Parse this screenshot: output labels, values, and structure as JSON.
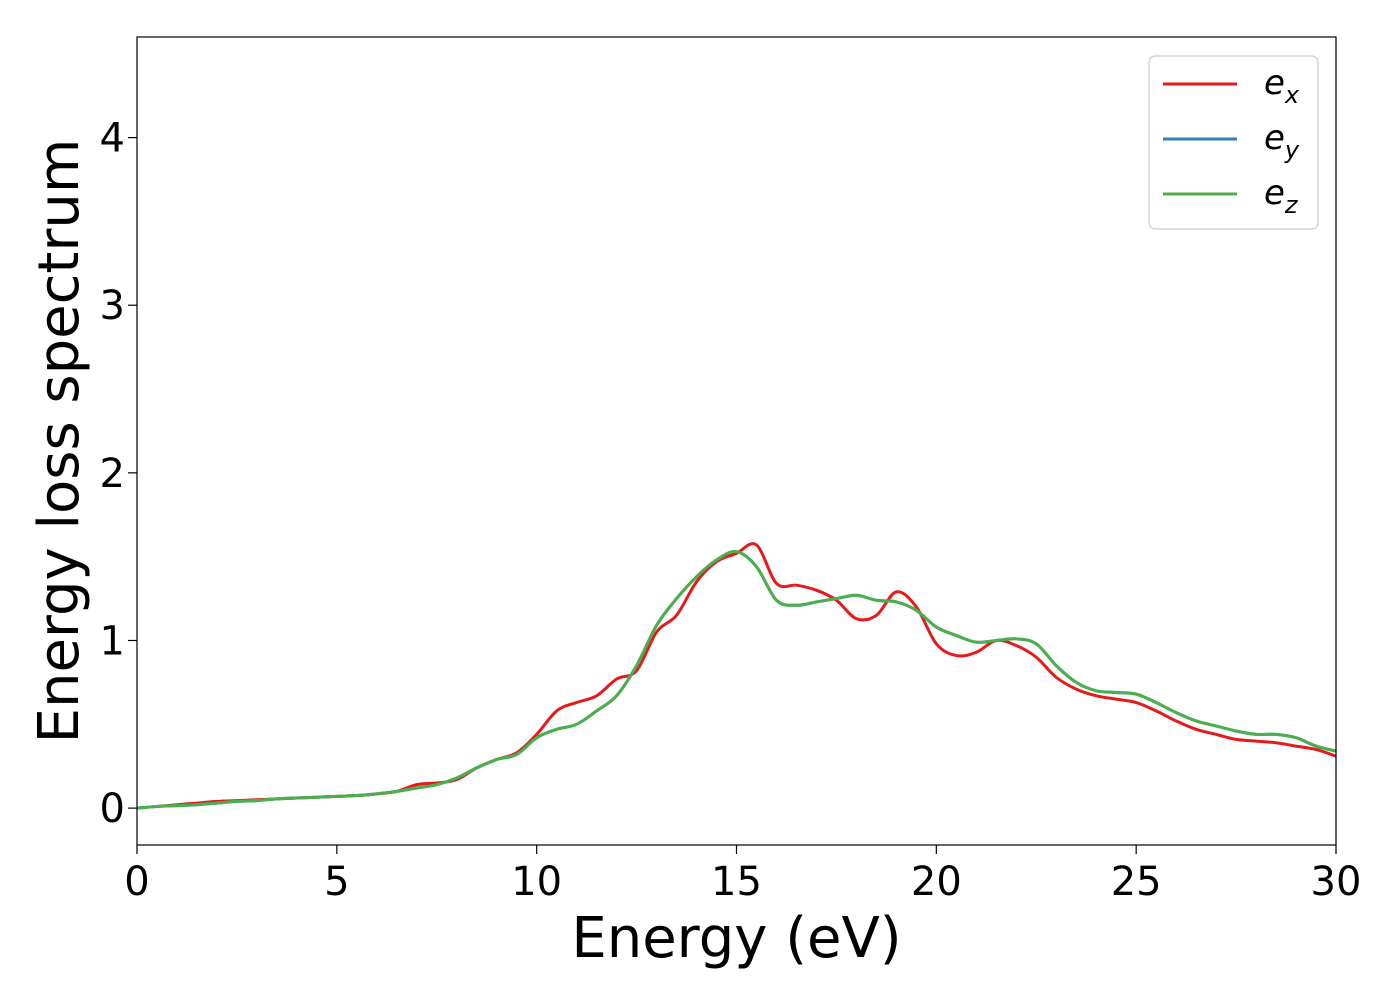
{
  "chart_data": {
    "type": "line",
    "xlabel": "Energy (eV)",
    "ylabel": "Energy loss spectrum",
    "xlim": [
      0,
      30
    ],
    "ylim": [
      -0.22,
      4.6
    ],
    "xticks": [
      "0",
      "5",
      "10",
      "15",
      "20",
      "25",
      "30"
    ],
    "yticks": [
      "0",
      "1",
      "2",
      "3",
      "4"
    ],
    "grid": false,
    "legend_position": "top-right",
    "x": [
      0,
      0.5,
      1,
      1.5,
      2,
      2.5,
      3,
      3.5,
      4,
      4.5,
      5,
      5.5,
      6,
      6.5,
      7,
      7.5,
      8,
      8.5,
      9,
      9.5,
      10,
      10.5,
      11,
      11.5,
      12,
      12.5,
      13,
      13.5,
      14,
      14.5,
      15,
      15.5,
      16,
      16.5,
      17,
      17.5,
      18,
      18.5,
      19,
      19.5,
      20,
      20.5,
      21,
      21.5,
      22,
      22.5,
      23,
      23.5,
      24,
      24.5,
      25,
      25.5,
      26,
      26.5,
      27,
      27.5,
      28,
      28.5,
      29,
      29.5,
      30
    ],
    "series": [
      {
        "name": "e_x",
        "label_base": "e",
        "label_sub": "x",
        "color": "#e41a1c",
        "values": [
          0.0,
          0.01,
          0.02,
          0.03,
          0.04,
          0.045,
          0.05,
          0.055,
          0.06,
          0.065,
          0.07,
          0.075,
          0.085,
          0.1,
          0.14,
          0.15,
          0.17,
          0.24,
          0.29,
          0.33,
          0.44,
          0.58,
          0.63,
          0.67,
          0.77,
          0.82,
          1.05,
          1.15,
          1.35,
          1.47,
          1.52,
          1.57,
          1.34,
          1.33,
          1.3,
          1.24,
          1.13,
          1.15,
          1.29,
          1.2,
          0.98,
          0.91,
          0.93,
          1.0,
          0.97,
          0.9,
          0.78,
          0.71,
          0.67,
          0.65,
          0.63,
          0.58,
          0.52,
          0.47,
          0.44,
          0.41,
          0.4,
          0.39,
          0.37,
          0.35,
          0.31
        ]
      },
      {
        "name": "e_y",
        "label_base": "e",
        "label_sub": "y",
        "color": "#377eb8",
        "values": [
          0.0,
          0.01,
          0.015,
          0.02,
          0.03,
          0.04,
          0.045,
          0.055,
          0.06,
          0.065,
          0.07,
          0.075,
          0.085,
          0.1,
          0.12,
          0.14,
          0.18,
          0.24,
          0.29,
          0.32,
          0.42,
          0.47,
          0.5,
          0.58,
          0.67,
          0.85,
          1.09,
          1.25,
          1.38,
          1.48,
          1.53,
          1.44,
          1.24,
          1.21,
          1.23,
          1.25,
          1.27,
          1.24,
          1.23,
          1.18,
          1.08,
          1.03,
          0.99,
          1.0,
          1.01,
          0.98,
          0.85,
          0.75,
          0.7,
          0.69,
          0.68,
          0.63,
          0.57,
          0.52,
          0.49,
          0.46,
          0.44,
          0.44,
          0.42,
          0.37,
          0.34
        ]
      },
      {
        "name": "e_z",
        "label_base": "e",
        "label_sub": "z",
        "color": "#4daf4a",
        "values": [
          0.0,
          0.01,
          0.015,
          0.02,
          0.03,
          0.04,
          0.045,
          0.055,
          0.06,
          0.065,
          0.07,
          0.075,
          0.085,
          0.1,
          0.12,
          0.14,
          0.18,
          0.24,
          0.29,
          0.32,
          0.42,
          0.47,
          0.5,
          0.58,
          0.67,
          0.85,
          1.09,
          1.25,
          1.38,
          1.48,
          1.53,
          1.44,
          1.24,
          1.21,
          1.23,
          1.25,
          1.27,
          1.24,
          1.23,
          1.18,
          1.08,
          1.03,
          0.99,
          1.0,
          1.01,
          0.98,
          0.85,
          0.75,
          0.7,
          0.69,
          0.68,
          0.63,
          0.57,
          0.52,
          0.49,
          0.46,
          0.44,
          0.44,
          0.42,
          0.37,
          0.34
        ]
      }
    ]
  }
}
